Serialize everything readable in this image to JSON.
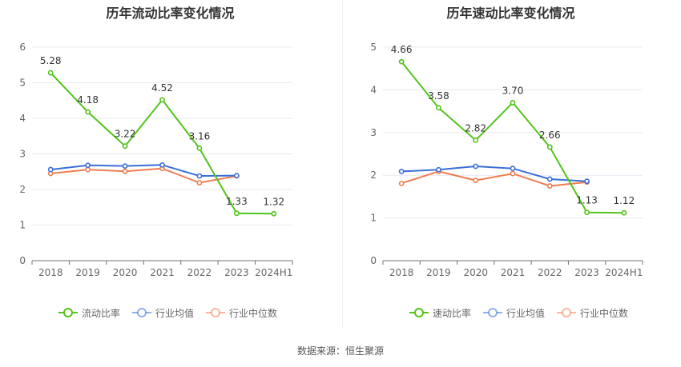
{
  "footer": {
    "source": "数据来源：恒生聚源"
  },
  "chart_data": [
    {
      "type": "line",
      "title": "历年流动比率变化情况",
      "categories": [
        "2018",
        "2019",
        "2020",
        "2021",
        "2022",
        "2023",
        "2024H1"
      ],
      "ylim": [
        0,
        6
      ],
      "yticks": [
        0,
        1,
        2,
        3,
        4,
        5,
        6
      ],
      "grid": true,
      "legend_position": "bottom",
      "series": [
        {
          "name": "流动比率",
          "color": "#52c41a",
          "values": [
            5.28,
            4.18,
            3.22,
            4.52,
            3.16,
            1.33,
            1.32
          ],
          "labels": [
            "5.28",
            "4.18",
            "3.22",
            "4.52",
            "3.16",
            "1.33",
            "1.32"
          ]
        },
        {
          "name": "行业均值",
          "color": "#3b6fd8",
          "values": [
            2.56,
            2.68,
            2.66,
            2.69,
            2.38,
            2.39,
            null
          ]
        },
        {
          "name": "行业中位数",
          "color": "#f07d51",
          "values": [
            2.45,
            2.56,
            2.51,
            2.59,
            2.19,
            2.38,
            null
          ]
        }
      ]
    },
    {
      "type": "line",
      "title": "历年速动比率变化情况",
      "categories": [
        "2018",
        "2019",
        "2020",
        "2021",
        "2022",
        "2023",
        "2024H1"
      ],
      "ylim": [
        0,
        5
      ],
      "yticks": [
        0,
        1,
        2,
        3,
        4,
        5
      ],
      "grid": true,
      "legend_position": "bottom",
      "series": [
        {
          "name": "速动比率",
          "color": "#52c41a",
          "values": [
            4.66,
            3.58,
            2.82,
            3.7,
            2.66,
            1.13,
            1.12
          ],
          "labels": [
            "4.66",
            "3.58",
            "2.82",
            "3.70",
            "2.66",
            "1.13",
            "1.12"
          ]
        },
        {
          "name": "行业均值",
          "color": "#3b6fd8",
          "values": [
            2.09,
            2.13,
            2.21,
            2.16,
            1.91,
            1.86,
            null
          ]
        },
        {
          "name": "行业中位数",
          "color": "#f07d51",
          "values": [
            1.81,
            2.09,
            1.88,
            2.04,
            1.75,
            1.84,
            null
          ]
        }
      ]
    }
  ]
}
